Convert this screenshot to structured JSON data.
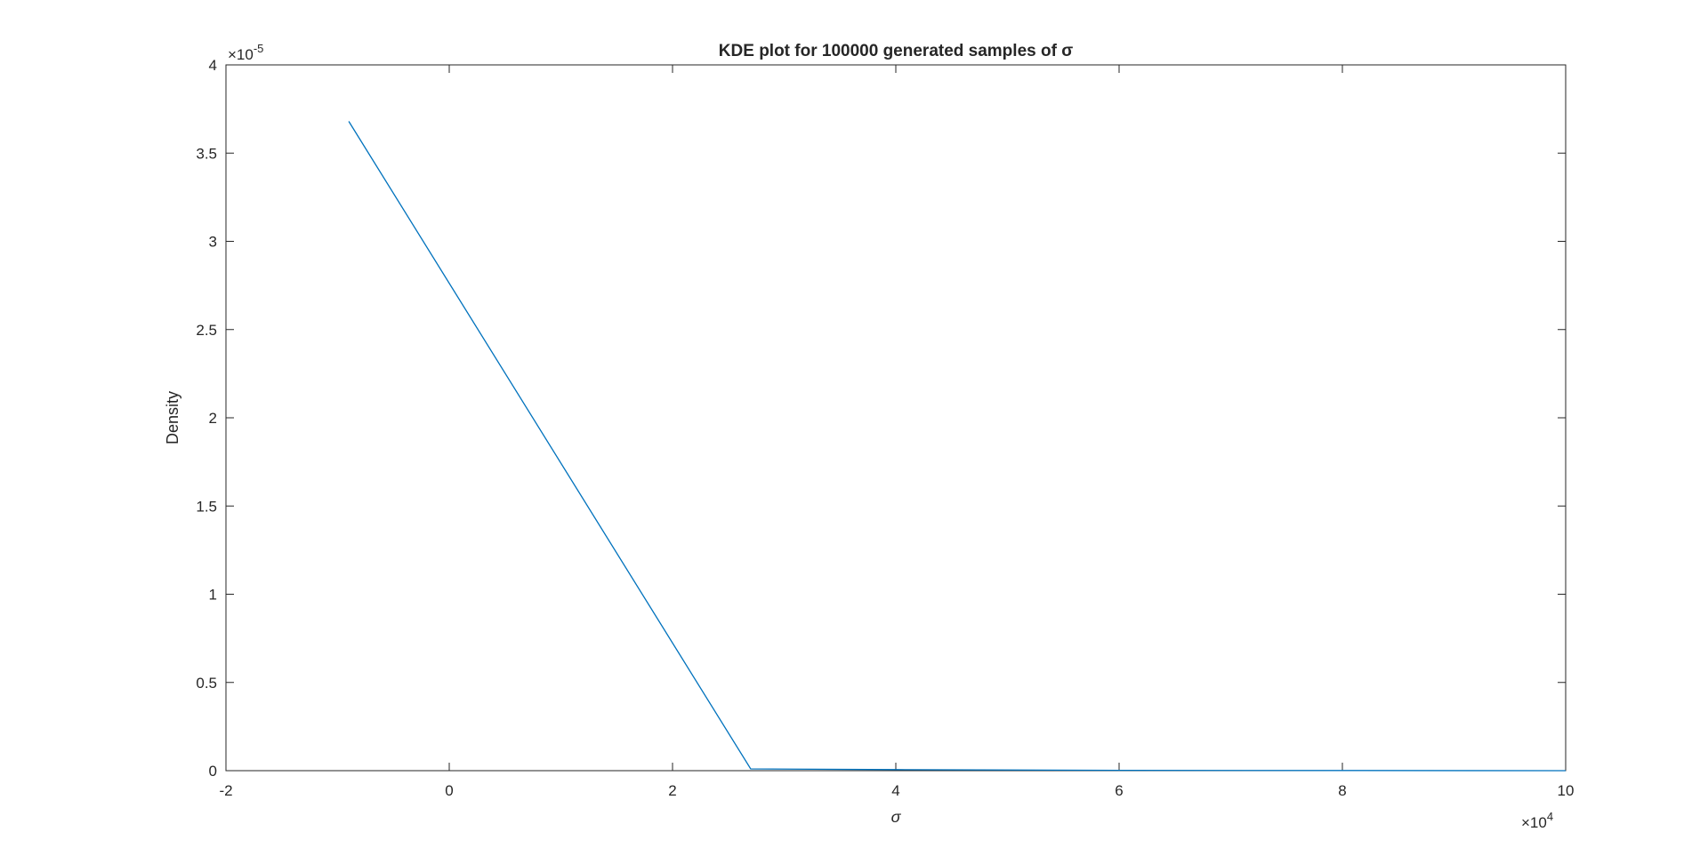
{
  "chart_data": {
    "type": "line",
    "title": "KDE plot for 100000 generated samples of σ",
    "xlabel": "σ",
    "ylabel": "Density",
    "xlim": [
      -2,
      10
    ],
    "ylim": [
      0,
      4
    ],
    "x_exponent_label": "×10",
    "x_exponent_power": "4",
    "y_exponent_label": "×10",
    "y_exponent_power": "-5",
    "x_ticks": [
      "-2",
      "0",
      "2",
      "4",
      "6",
      "8",
      "10"
    ],
    "y_ticks": [
      "0",
      "0.5",
      "1",
      "1.5",
      "2",
      "2.5",
      "3",
      "3.5",
      "4"
    ],
    "grid": false,
    "box": true,
    "series": [
      {
        "color": "#0072BD",
        "x": [
          -0.9,
          2.7,
          4.0,
          6.0,
          8.0,
          10.0
        ],
        "y": [
          3.68,
          0.01,
          0.006,
          0.002,
          0.001,
          0.0
        ]
      }
    ]
  }
}
